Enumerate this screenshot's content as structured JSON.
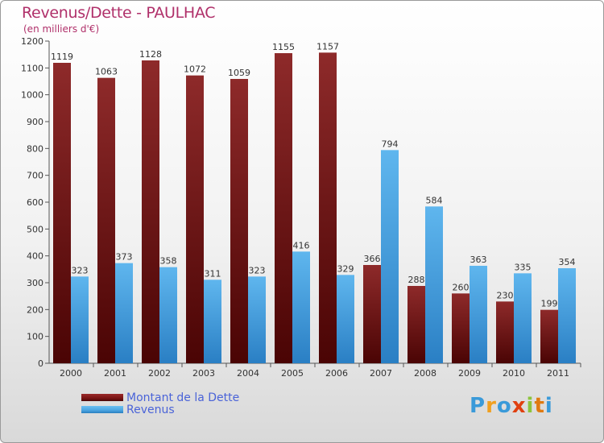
{
  "title": "Revenus/Dette - PAULHAC",
  "subtitle": "(en milliers d'€)",
  "colors": {
    "debt": "#7a1414",
    "revenue": "#4aa3e0",
    "title": "#b0306a",
    "legend_text": "#4a63d8"
  },
  "legend": {
    "debt_label": "Montant de la Dette",
    "revenue_label": "Revenus"
  },
  "logo": {
    "letters": [
      "P",
      "r",
      "o",
      "x",
      "i",
      "t",
      "i"
    ],
    "colors": [
      "#3a9ad9",
      "#f0a020",
      "#3a9ad9",
      "#e04010",
      "#8cc43c",
      "#e07a10",
      "#3a9ad9"
    ]
  },
  "chart_data": {
    "type": "bar",
    "title": "Revenus/Dette - PAULHAC",
    "ylabel": "(en milliers d'€)",
    "xlabel": "",
    "ylim": [
      0,
      1200
    ],
    "yticks": [
      0,
      100,
      200,
      300,
      400,
      500,
      600,
      700,
      800,
      900,
      1000,
      1100,
      1200
    ],
    "grid": false,
    "legend_position": "bottom-left",
    "categories": [
      "2000",
      "2001",
      "2002",
      "2003",
      "2004",
      "2005",
      "2006",
      "2007",
      "2008",
      "2009",
      "2010",
      "2011"
    ],
    "series": [
      {
        "name": "Montant de la Dette",
        "values": [
          1119,
          1063,
          1128,
          1072,
          1059,
          1155,
          1157,
          366,
          288,
          260,
          230,
          199
        ]
      },
      {
        "name": "Revenus",
        "values": [
          323,
          373,
          358,
          311,
          323,
          416,
          329,
          794,
          584,
          363,
          335,
          354
        ]
      }
    ]
  }
}
